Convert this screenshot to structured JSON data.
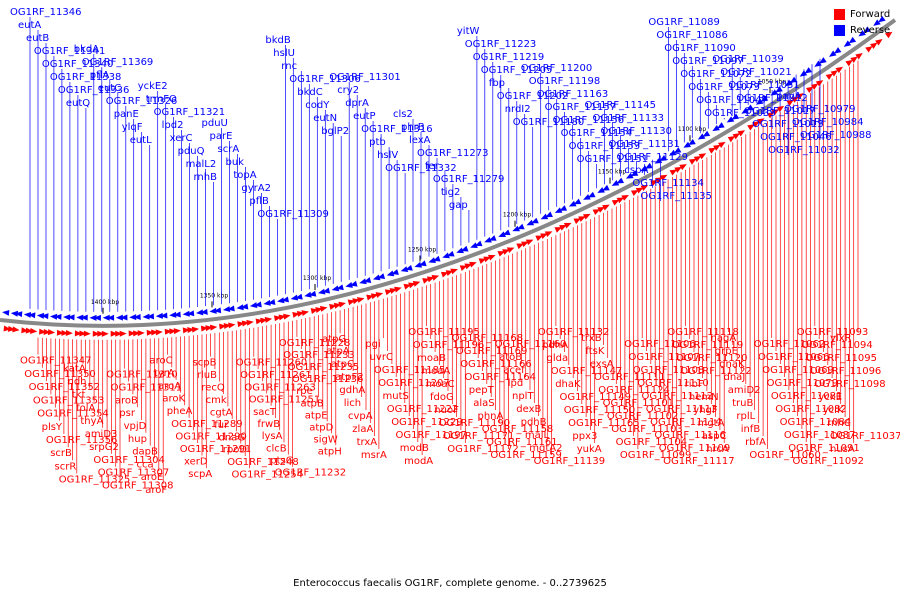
{
  "caption": "Enterococcus faecalis OG1RF, complete genome. - 0..2739625",
  "legend": [
    {
      "label": "Forward",
      "color": "#ff0000"
    },
    {
      "label": "Reverse",
      "color": "#0000ff"
    }
  ],
  "colors": {
    "forward": "#ff0000",
    "reverse": "#0000ff",
    "backbone": "#888888"
  },
  "ticks": [
    "1050 kbp",
    "1100 kbp",
    "1150 kbp",
    "1200 kbp",
    "1250 kbp",
    "1300 kbp",
    "1350 kbp",
    "1400 kbp"
  ],
  "top_labels": [
    "OG1RF_11346",
    "eutA",
    "eutB",
    "OG1RF_11341",
    "OG1RF_11340",
    "OG1RF_11338",
    "OG1RF_11336",
    "eutQ",
    "bkdA",
    "OG1RF_11369",
    "pflA",
    "eutC",
    "OG1RF_11326",
    "panE",
    "ylqF",
    "eutL",
    "yckE2",
    "trmFO",
    "OG1RF_11321",
    "lpd2",
    "xerC",
    "pduQ",
    "malL2",
    "rnhB",
    "pduU",
    "parE",
    "scrA",
    "buk",
    "topA",
    "gyrA2",
    "pflB",
    "OG1RF_11309",
    "bkdB",
    "hslU",
    "rnc",
    "OG1RF_11306",
    "bkdC",
    "codY",
    "eutN",
    "bglP2",
    "OG1RF_11301",
    "cry2",
    "dprA",
    "eutP",
    "OG1RF_11316",
    "ptb",
    "hslV",
    "OG1RF_11332",
    "cls2",
    "phrB",
    "lexA",
    "OG1RF_11273",
    "fer",
    "OG1RF_11279",
    "tig2",
    "gap",
    "yitW",
    "OG1RF_11223",
    "OG1RF_11219",
    "OG1RF_11205",
    "fbp",
    "OG1RF_11202",
    "nrdI2",
    "OG1RF_11180",
    "OG1RF_11200",
    "OG1RF_11198",
    "OG1RF_11163",
    "OG1RF_11157",
    "OG1RF_11156",
    "OG1RF_11154",
    "OG1RF_11153",
    "OG1RF_11151",
    "OG1RF_11145",
    "OG1RF_11133",
    "OG1RF_11130",
    "OG1RF_11131",
    "OG1RF_11129",
    "cspA",
    "OG1RF_11134",
    "OG1RF_11135",
    "OG1RF_11089",
    "OG1RF_11086",
    "OG1RF_11090",
    "OG1RF_11097",
    "OG1RF_11072",
    "OG1RF_11073",
    "OG1RF_11047",
    "OG1RF_11033",
    "OG1RF_11039",
    "OG1RF_11021",
    "OG1RF_11031",
    "OG1RF_11012",
    "OG1RF_11017",
    "OG1RF_11013",
    "OG1RF_11046",
    "OG1RF_11032",
    "pavA",
    "OG1RF_10979",
    "OG1RF_10984",
    "OG1RF_10988"
  ],
  "bottom_labels": [
    "OG1RF_11347",
    "OG1RF_11350",
    "OG1RF_11352",
    "OG1RF_11353",
    "OG1RF_11354",
    "plsY",
    "OG1RF_11356",
    "scrB",
    "scrR",
    "OG1RF_11325",
    "katA",
    "ndh",
    "tkt",
    "folA",
    "thyA",
    "amiD3",
    "srpG2",
    "OG1RF_11304",
    "OG1RF_11307",
    "OG1RF_11308",
    "OG1RF_11310",
    "OG1RF_11311",
    "aroB",
    "psr",
    "vpjD",
    "hup",
    "dapB",
    "cca",
    "aroE",
    "aroF",
    "aroC",
    "tyrA",
    "aroA",
    "aroK",
    "pheA",
    "OG1RF_11289",
    "OG1RF_11290",
    "OG1RF_11291",
    "xerD",
    "scpA",
    "scpB",
    "rluB",
    "recQ",
    "cmk",
    "cgtA",
    "fur",
    "dnaG",
    "rpoD",
    "OG1RF_11248",
    "OG1RF_11254",
    "OG1RF_11260",
    "OG1RF_11261",
    "OG1RF_11263",
    "OG1RF_11251",
    "sacT",
    "frwB",
    "lysA",
    "clcB",
    "ptsG",
    "OG1RF_11232",
    "OG1RF_11228",
    "OG1RF_11233",
    "OG1RF_11235",
    "OG1RF_11236",
    "rpe",
    "atpB",
    "atpE",
    "atpD",
    "sigW",
    "atpH",
    "atpG",
    "atpA",
    "atpC",
    "atpF2",
    "gdhA",
    "lich",
    "cvpA",
    "zlaA",
    "trxA",
    "msrA",
    "pgi",
    "uvrC",
    "OG1RF_11185",
    "OG1RF_11207",
    "mutS",
    "OG1RF_11222",
    "OG1RF_11229",
    "OG1RF_11197",
    "modB",
    "modA",
    "OG1RF_11195",
    "OG1RF_11196",
    "moaB",
    "moaA",
    "moaC",
    "fdoG",
    "nuoF",
    "OG1RF_11190",
    "OG1RF_11171",
    "OG1RF_11172",
    "OG1RF_11168",
    "OG1RF_11169",
    "OG1RF_11166",
    "OG1RF_11164",
    "pepT",
    "alaS",
    "phnA",
    "OG1RF_11158",
    "OG1RF_11161",
    "OG1RF_11159",
    "OG1RF_11160",
    "atoB",
    "acef",
    "lpd",
    "nplT",
    "dexB",
    "pdhB",
    "malL",
    "mgtA2",
    "OG1RF_11139",
    "OG1RF_11132",
    "pdhA",
    "glda",
    "OG1RF_11147",
    "dhaK",
    "OG1RF_11149",
    "OG1RF_11150",
    "OG1RF_11165",
    "ppx3",
    "yukA",
    "trxB",
    "ftsK",
    "exsA",
    "OG1RF_11111",
    "OG1RF_11124",
    "OG1RF_11101",
    "OG1RF_11102",
    "OG1RF_11103",
    "OG1RF_11104",
    "OG1RF_11099",
    "OG1RF_11106",
    "OG1RF_11107",
    "OG1RF_11108",
    "OG1RF_11110",
    "OG1RF_11112",
    "OG1RF_11113",
    "OG1RF_11114",
    "OG1RF_11116",
    "OG1RF_11109",
    "OG1RF_11117",
    "OG1RF_11118",
    "OG1RF_11119",
    "OG1RF_11120",
    "OG1RF_11122",
    "ribF",
    "hemN",
    "yhgF",
    "mgtA",
    "aspC",
    "hrcA",
    "nagA",
    "grpE",
    "dnaK",
    "dnaJ",
    "amiD2",
    "truB",
    "rplL",
    "infB",
    "rbfA",
    "OG1RF_11060",
    "OG1RF_11062",
    "OG1RF_11066",
    "OG1RF_11069",
    "OG1RF_11079",
    "OG1RF_11081",
    "OG1RF_11082",
    "OG1RF_11084",
    "OG1RF_11087",
    "OG1RF_11091",
    "OG1RF_11092",
    "OG1RF_11093",
    "OG1RF_11094",
    "OG1RF_11095",
    "OG1RF_11096",
    "OG1RF_11098",
    "yckE",
    "yclK",
    "rnhC",
    "OG1RF_11037",
    "nusA",
    "ylxR"
  ]
}
